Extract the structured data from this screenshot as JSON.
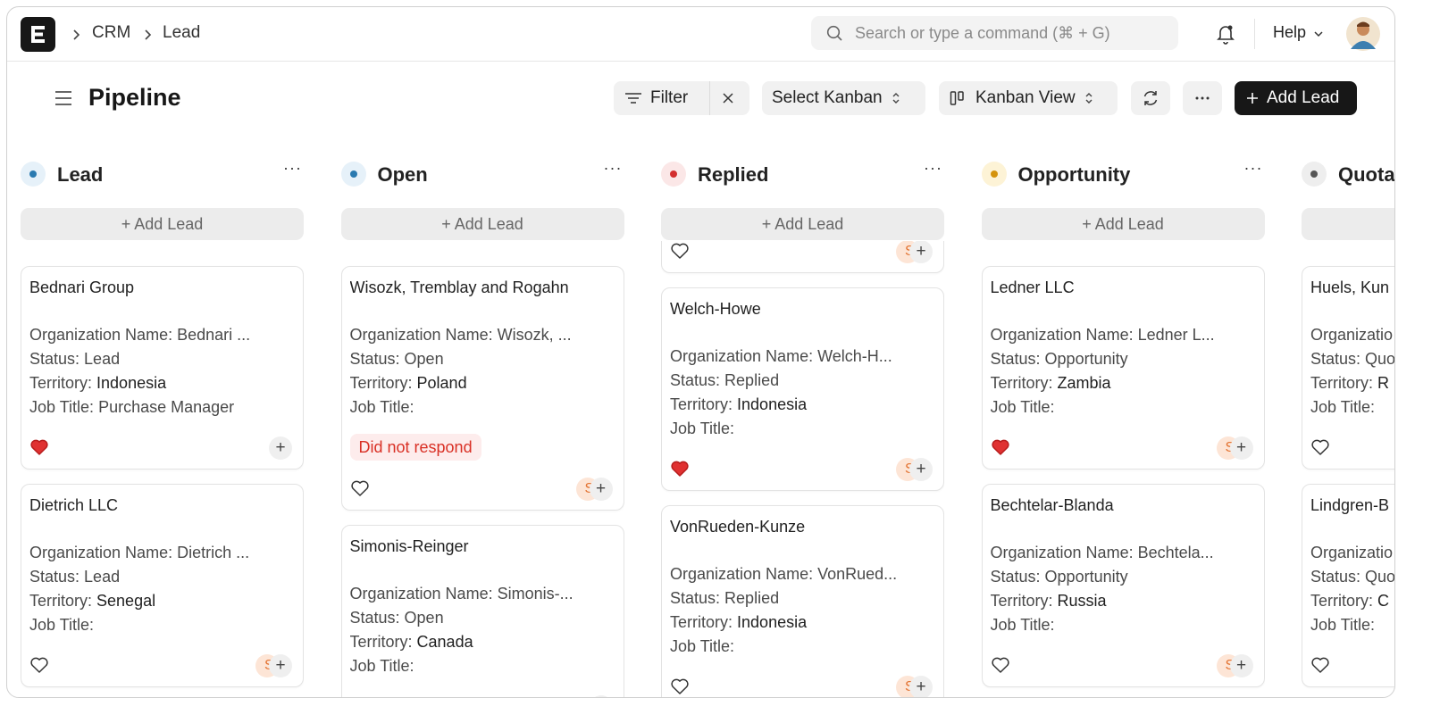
{
  "navbar": {
    "breadcrumbs": [
      "CRM",
      "Lead"
    ],
    "search_placeholder": "Search or type a command (⌘ + G)",
    "help": "Help"
  },
  "toolbar": {
    "title": "Pipeline",
    "filter": "Filter",
    "select_kanban": "Select Kanban",
    "kanban_view": "Kanban View",
    "add_lead": "Add Lead"
  },
  "columns": [
    {
      "title": "Lead",
      "dot_color": "#2a7ab0",
      "dot_bg": "#e6f1f9",
      "add": "+ Add Lead",
      "cards": [
        {
          "title": "Bednari Group",
          "fields": [
            {
              "label": "Organization Name:",
              "value": "Bednari ..."
            },
            {
              "label": "Status:",
              "value": "Lead"
            },
            {
              "label": "Territory:",
              "value": "Indonesia"
            },
            {
              "label": "Job Title:",
              "value": "Purchase Manager"
            }
          ],
          "liked": true
        },
        {
          "title": "Dietrich LLC",
          "fields": [
            {
              "label": "Organization Name:",
              "value": "Dietrich ..."
            },
            {
              "label": "Status:",
              "value": "Lead"
            },
            {
              "label": "Territory:",
              "value": "Senegal"
            },
            {
              "label": "Job Title:"
            }
          ],
          "liked": false,
          "avatar": "S"
        }
      ]
    },
    {
      "title": "Open",
      "dot_color": "#2a7ab0",
      "dot_bg": "#e6f1f9",
      "add": "+ Add Lead",
      "cards": [
        {
          "title": "Wisozk, Tremblay and Rogahn",
          "fields": [
            {
              "label": "Organization Name:",
              "value": "Wisozk, ..."
            },
            {
              "label": "Status:",
              "value": "Open"
            },
            {
              "label": "Territory:",
              "value": "Poland"
            },
            {
              "label": "Job Title:"
            }
          ],
          "tag": "Did not respond",
          "liked": false,
          "avatar": "S"
        },
        {
          "title": "Simonis-Reinger",
          "fields": [
            {
              "label": "Organization Name:",
              "value": "Simonis-..."
            },
            {
              "label": "Status:",
              "value": "Open"
            },
            {
              "label": "Territory:",
              "value": "Canada"
            },
            {
              "label": "Job Title:"
            }
          ]
        }
      ]
    },
    {
      "title": "Replied",
      "dot_color": "#d32f2f",
      "dot_bg": "#fbe7e7",
      "add": "+ Add Lead",
      "cards": [
        {
          "liked": false,
          "avatar": "S"
        },
        {
          "title": "Welch-Howe",
          "fields": [
            {
              "label": "Organization Name:",
              "value": "Welch-H..."
            },
            {
              "label": "Status:",
              "value": "Replied"
            },
            {
              "label": "Territory:",
              "value": "Indonesia"
            },
            {
              "label": "Job Title:"
            }
          ],
          "liked": true,
          "avatar": "S"
        },
        {
          "title": "VonRueden-Kunze",
          "fields": [
            {
              "label": "Organization Name:",
              "value": "VonRued..."
            },
            {
              "label": "Status:",
              "value": "Replied"
            },
            {
              "label": "Territory:",
              "value": "Indonesia"
            },
            {
              "label": "Job Title:"
            }
          ],
          "liked": false,
          "avatar": "S"
        }
      ]
    },
    {
      "title": "Opportunity",
      "dot_color": "#d4930c",
      "dot_bg": "#fdf3d6",
      "add": "+ Add Lead",
      "cards": [
        {
          "title": "Ledner LLC",
          "fields": [
            {
              "label": "Organization Name:",
              "value": "Ledner L..."
            },
            {
              "label": "Status:",
              "value": "Opportunity"
            },
            {
              "label": "Territory:",
              "value": "Zambia"
            },
            {
              "label": "Job Title:"
            }
          ],
          "liked": true,
          "avatar": "S"
        },
        {
          "title": "Bechtelar-Blanda",
          "fields": [
            {
              "label": "Organization Name:",
              "value": "Bechtela..."
            },
            {
              "label": "Status:",
              "value": "Opportunity"
            },
            {
              "label": "Territory:",
              "value": "Russia"
            },
            {
              "label": "Job Title:"
            }
          ],
          "liked": false,
          "avatar": "S"
        }
      ]
    },
    {
      "title": "Quota",
      "dot_color": "#555555",
      "dot_bg": "#eeeeee",
      "cards": [
        {
          "title": "Huels, Kun",
          "fields": [
            {
              "label": "Organizatio"
            },
            {
              "label": "Status:",
              "value": "Quo"
            },
            {
              "label": "Territory:",
              "value": "R"
            },
            {
              "label": "Job Title:"
            }
          ],
          "liked": false
        },
        {
          "title": "Lindgren-B",
          "fields": [
            {
              "label": "Organizatio"
            },
            {
              "label": "Status:",
              "value": "Quo"
            },
            {
              "label": "Territory:",
              "value": "C"
            },
            {
              "label": "Job Title:"
            }
          ],
          "liked": false
        }
      ]
    }
  ]
}
